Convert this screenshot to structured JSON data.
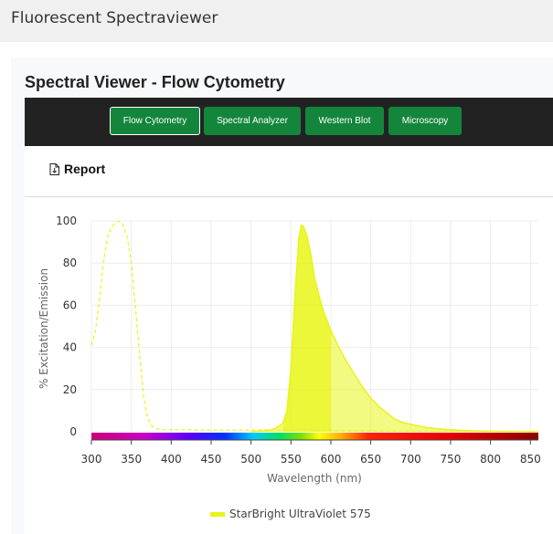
{
  "app": {
    "title": "Fluorescent Spectraviewer"
  },
  "panel": {
    "title": "Spectral Viewer - Flow Cytometry"
  },
  "nav": {
    "tabs": [
      {
        "label": "Flow Cytometry",
        "active": true
      },
      {
        "label": "Spectral Analyzer",
        "active": false
      },
      {
        "label": "Western Blot",
        "active": false
      },
      {
        "label": "Microscopy",
        "active": false
      }
    ]
  },
  "toolbar": {
    "report_label": "Report",
    "report_icon": "document-download-icon"
  },
  "colors": {
    "brand_green": "#14863c",
    "nav_dark": "#222222",
    "dye": "#e8f51a"
  },
  "chart_data": {
    "type": "area",
    "xlabel": "Wavelength (nm)",
    "ylabel": "% Excitation/Emission",
    "xlim": [
      300,
      860
    ],
    "ylim": [
      0,
      100
    ],
    "x_ticks": [
      300,
      350,
      400,
      450,
      500,
      550,
      600,
      650,
      700,
      750,
      800,
      850
    ],
    "y_ticks": [
      0,
      20,
      40,
      60,
      80,
      100
    ],
    "grid": true,
    "legend_position": "bottom",
    "spectrum_bar": true,
    "series": [
      {
        "name": "StarBright UltraViolet 575",
        "kind": "excitation",
        "style": "dashed",
        "color": "#e8f51a",
        "x": [
          300,
          305,
          310,
          315,
          320,
          325,
          330,
          335,
          340,
          345,
          350,
          355,
          360,
          365,
          370,
          375,
          380,
          390,
          400,
          420,
          450,
          500,
          540,
          560,
          580,
          600,
          650,
          700,
          800,
          860
        ],
        "y": [
          41,
          48,
          62,
          80,
          92,
          97,
          99,
          100,
          98,
          92,
          80,
          60,
          38,
          18,
          7,
          3,
          1.5,
          1,
          1,
          1,
          0.8,
          0.8,
          1,
          1.5,
          1,
          0.5,
          0.3,
          0.2,
          0.1,
          0
        ]
      },
      {
        "name": "StarBright UltraViolet 575",
        "kind": "emission",
        "style": "filled",
        "color": "#e8f51a",
        "x": [
          500,
          520,
          530,
          540,
          545,
          550,
          555,
          560,
          563,
          566,
          570,
          575,
          580,
          590,
          600,
          610,
          620,
          630,
          640,
          650,
          660,
          670,
          680,
          690,
          700,
          720,
          740,
          760,
          780,
          800,
          830,
          860
        ],
        "y": [
          0,
          0.5,
          1.5,
          4,
          10,
          30,
          65,
          92,
          98,
          97,
          93,
          84,
          72,
          58,
          48,
          40,
          33,
          27,
          21,
          16,
          12,
          9,
          6,
          4.5,
          3.5,
          2,
          1.2,
          0.7,
          0.4,
          0.2,
          0.1,
          0
        ]
      }
    ]
  }
}
